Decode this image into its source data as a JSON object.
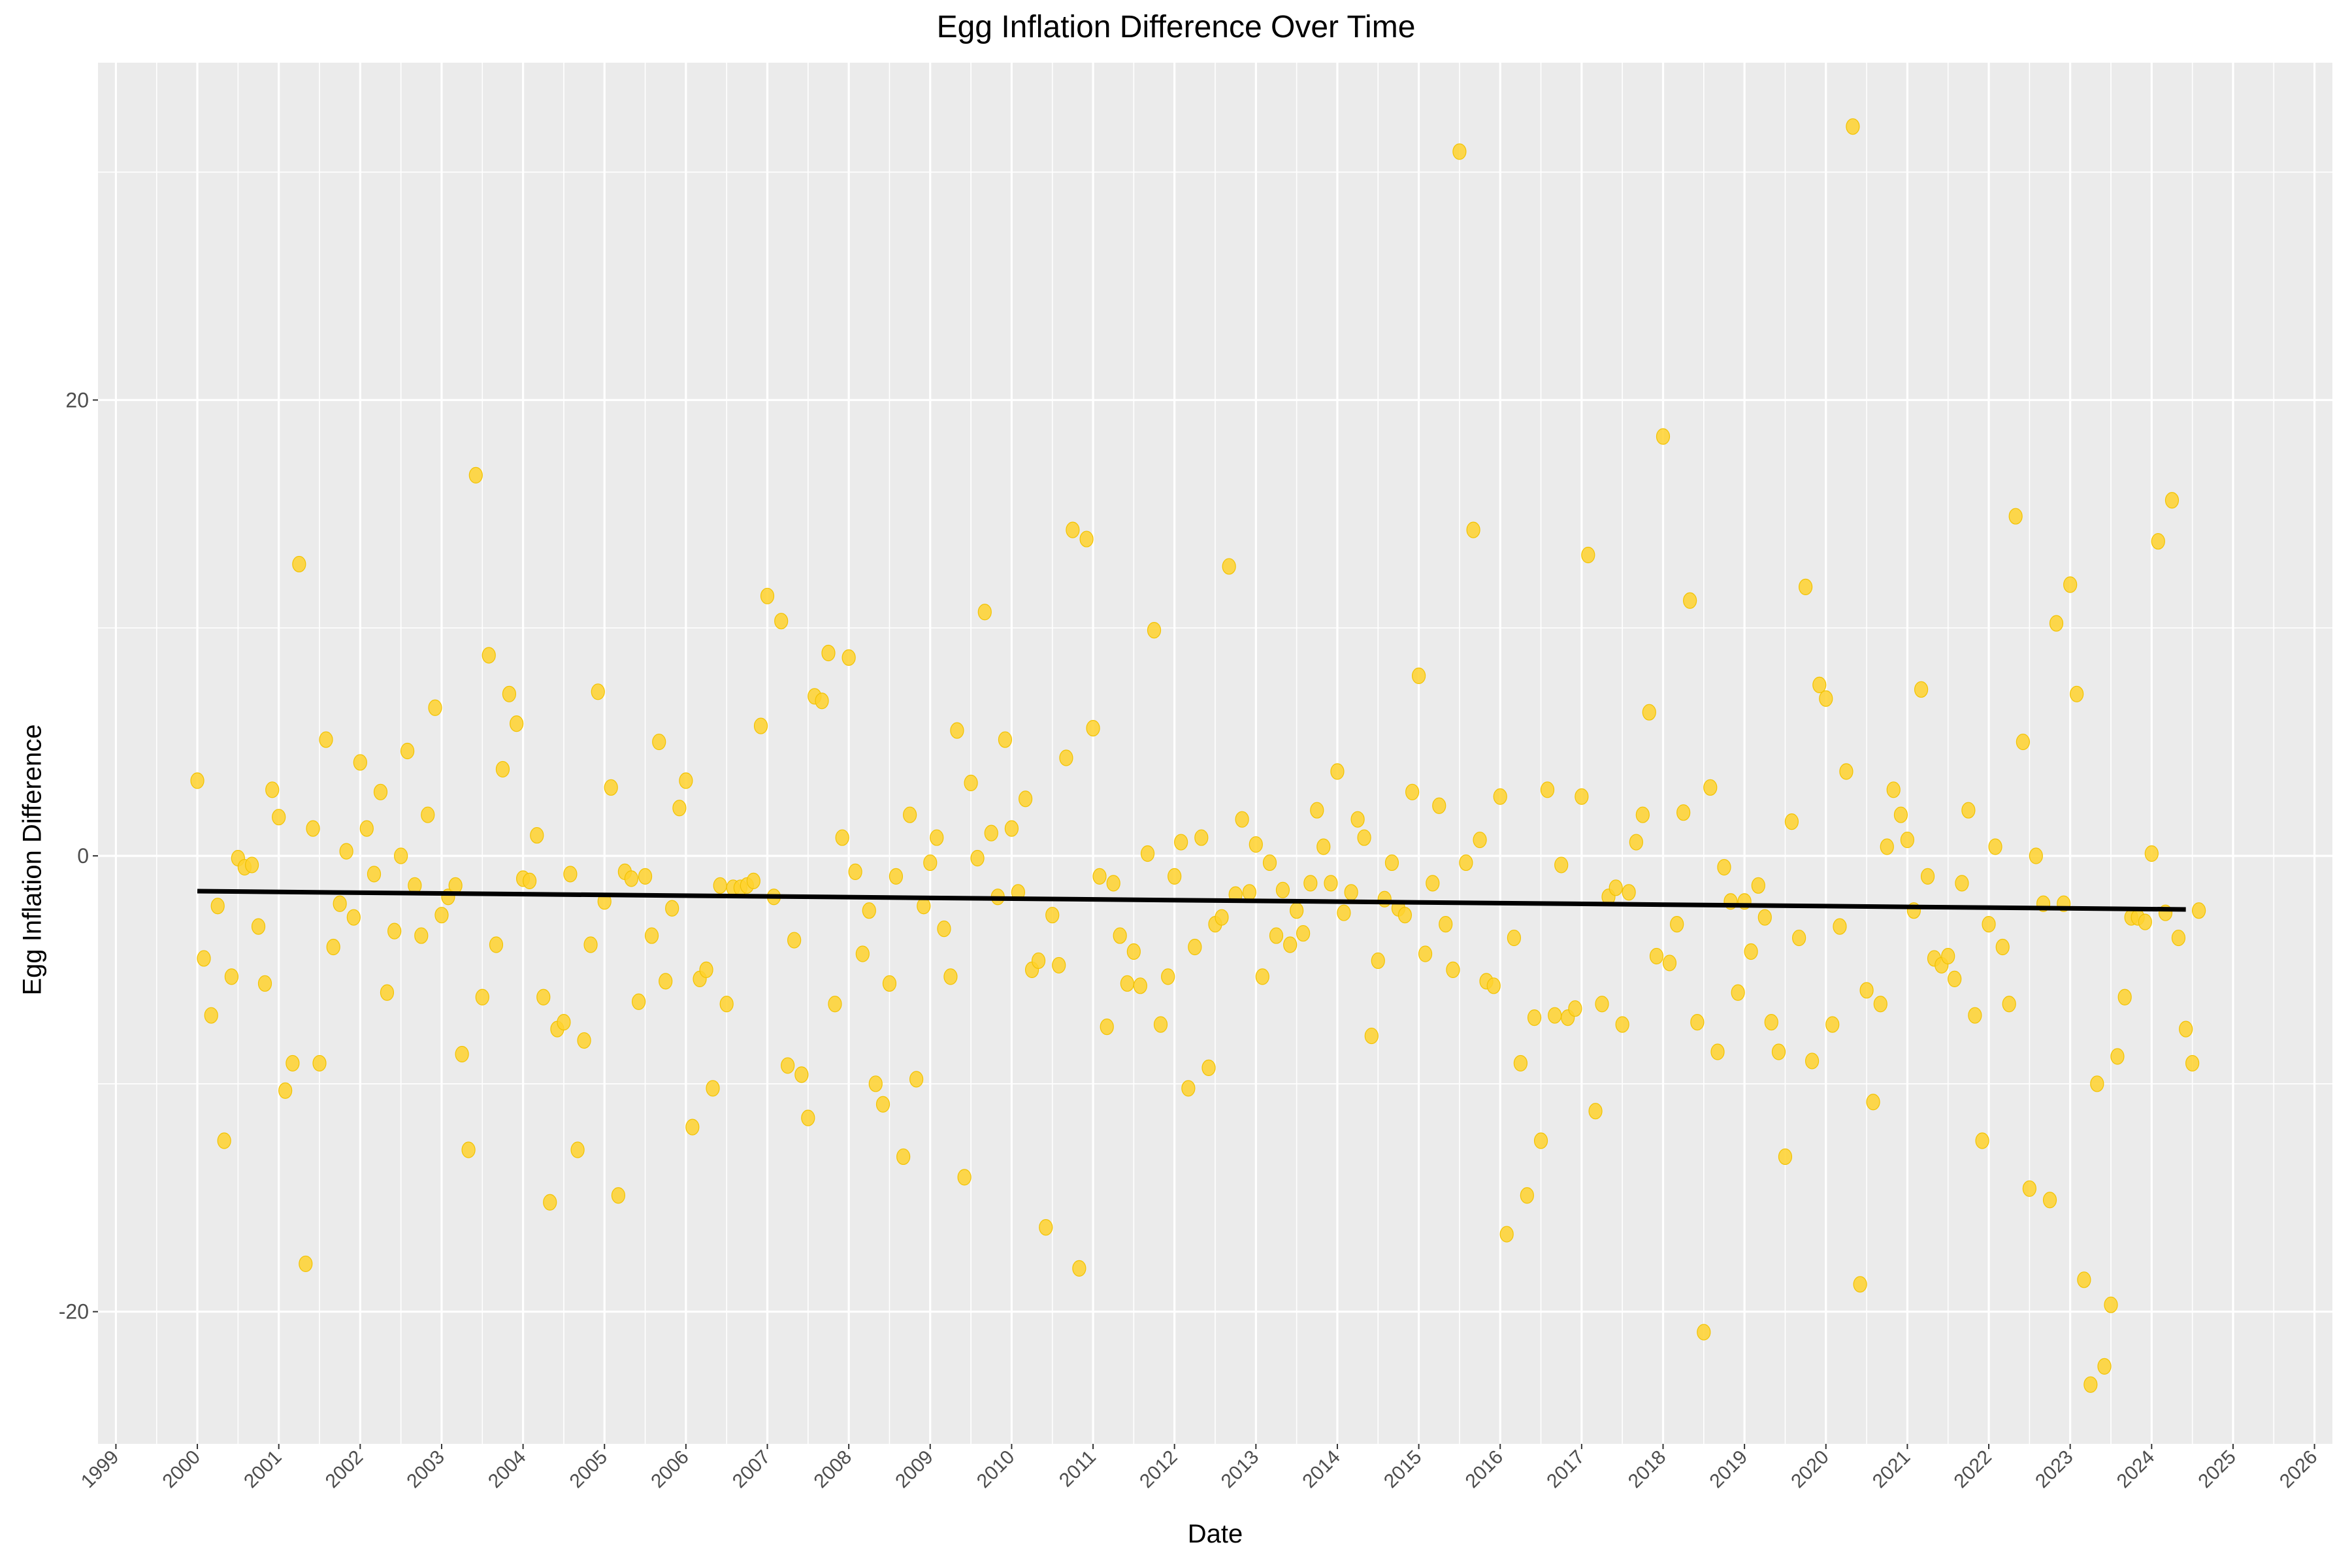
{
  "chart_data": {
    "type": "scatter",
    "title": "Egg Inflation Difference Over Time",
    "xlabel": "Date",
    "ylabel": "Egg Inflation Difference",
    "xlim": [
      1998.78,
      2026.22
    ],
    "ylim": [
      -25.8,
      34.8
    ],
    "x_ticks": [
      "1999",
      "2000",
      "2001",
      "2002",
      "2003",
      "2004",
      "2005",
      "2006",
      "2007",
      "2008",
      "2009",
      "2010",
      "2011",
      "2012",
      "2013",
      "2014",
      "2015",
      "2016",
      "2017",
      "2018",
      "2019",
      "2020",
      "2021",
      "2022",
      "2023",
      "2024",
      "2025",
      "2026"
    ],
    "y_ticks": [
      -20,
      0,
      20
    ],
    "grid": true,
    "background": "#ebebeb",
    "point_color": "#ffd22e",
    "trend_color": "#000000",
    "trend_line": {
      "x": [
        2000.0,
        2024.42
      ],
      "y": [
        -1.55,
        -2.35
      ]
    },
    "points": [
      [
        2000.0,
        3.3
      ],
      [
        2000.08,
        -4.5
      ],
      [
        2000.17,
        -7.0
      ],
      [
        2000.25,
        -2.2
      ],
      [
        2000.33,
        -12.5
      ],
      [
        2000.42,
        -5.3
      ],
      [
        2000.5,
        -0.1
      ],
      [
        2000.58,
        -0.5
      ],
      [
        2000.67,
        -0.4
      ],
      [
        2000.75,
        -3.1
      ],
      [
        2000.83,
        -5.6
      ],
      [
        2000.92,
        2.9
      ],
      [
        2001.0,
        1.7
      ],
      [
        2001.08,
        -10.3
      ],
      [
        2001.17,
        -9.1
      ],
      [
        2001.25,
        12.8
      ],
      [
        2001.33,
        -17.9
      ],
      [
        2001.42,
        1.2
      ],
      [
        2001.5,
        -9.1
      ],
      [
        2001.58,
        5.1
      ],
      [
        2001.67,
        -4.0
      ],
      [
        2001.75,
        -2.1
      ],
      [
        2001.83,
        0.2
      ],
      [
        2001.92,
        -2.7
      ],
      [
        2002.0,
        4.1
      ],
      [
        2002.08,
        1.2
      ],
      [
        2002.17,
        -0.8
      ],
      [
        2002.25,
        2.8
      ],
      [
        2002.33,
        -6.0
      ],
      [
        2002.42,
        -3.3
      ],
      [
        2002.5,
        0.0
      ],
      [
        2002.58,
        4.6
      ],
      [
        2002.67,
        -1.3
      ],
      [
        2002.75,
        -3.5
      ],
      [
        2002.83,
        1.8
      ],
      [
        2002.92,
        6.5
      ],
      [
        2003.0,
        -2.6
      ],
      [
        2003.08,
        -1.8
      ],
      [
        2003.17,
        -1.3
      ],
      [
        2003.25,
        -8.7
      ],
      [
        2003.33,
        -12.9
      ],
      [
        2003.42,
        16.7
      ],
      [
        2003.5,
        -6.2
      ],
      [
        2003.58,
        8.8
      ],
      [
        2003.67,
        -3.9
      ],
      [
        2003.75,
        3.8
      ],
      [
        2003.83,
        7.1
      ],
      [
        2003.92,
        5.8
      ],
      [
        2004.0,
        -1.0
      ],
      [
        2004.08,
        -1.1
      ],
      [
        2004.17,
        0.9
      ],
      [
        2004.25,
        -6.2
      ],
      [
        2004.33,
        -15.2
      ],
      [
        2004.42,
        -7.6
      ],
      [
        2004.5,
        -7.3
      ],
      [
        2004.58,
        -0.8
      ],
      [
        2004.67,
        -12.9
      ],
      [
        2004.75,
        -8.1
      ],
      [
        2004.83,
        -3.9
      ],
      [
        2004.92,
        7.2
      ],
      [
        2005.0,
        -2.0
      ],
      [
        2005.08,
        3.0
      ],
      [
        2005.17,
        -14.9
      ],
      [
        2005.25,
        -0.7
      ],
      [
        2005.33,
        -1.0
      ],
      [
        2005.42,
        -6.4
      ],
      [
        2005.5,
        -0.9
      ],
      [
        2005.58,
        -3.5
      ],
      [
        2005.67,
        5.0
      ],
      [
        2005.75,
        -5.5
      ],
      [
        2005.83,
        -2.3
      ],
      [
        2005.92,
        2.1
      ],
      [
        2006.0,
        3.3
      ],
      [
        2006.08,
        -11.9
      ],
      [
        2006.17,
        -5.4
      ],
      [
        2006.25,
        -5.0
      ],
      [
        2006.33,
        -10.2
      ],
      [
        2006.42,
        -1.3
      ],
      [
        2006.5,
        -6.5
      ],
      [
        2006.58,
        -1.4
      ],
      [
        2006.67,
        -1.4
      ],
      [
        2006.75,
        -1.3
      ],
      [
        2006.83,
        -1.1
      ],
      [
        2006.92,
        5.7
      ],
      [
        2007.0,
        11.4
      ],
      [
        2007.08,
        -1.8
      ],
      [
        2007.17,
        10.3
      ],
      [
        2007.25,
        -9.2
      ],
      [
        2007.33,
        -3.7
      ],
      [
        2007.42,
        -9.6
      ],
      [
        2007.5,
        -11.5
      ],
      [
        2007.58,
        7.0
      ],
      [
        2007.67,
        6.8
      ],
      [
        2007.75,
        8.9
      ],
      [
        2007.83,
        -6.5
      ],
      [
        2007.92,
        0.8
      ],
      [
        2008.0,
        8.7
      ],
      [
        2008.08,
        -0.7
      ],
      [
        2008.17,
        -4.3
      ],
      [
        2008.25,
        -2.4
      ],
      [
        2008.33,
        -10.0
      ],
      [
        2008.42,
        -10.9
      ],
      [
        2008.5,
        -5.6
      ],
      [
        2008.58,
        -0.9
      ],
      [
        2008.67,
        -13.2
      ],
      [
        2008.75,
        1.8
      ],
      [
        2008.83,
        -9.8
      ],
      [
        2008.92,
        -2.2
      ],
      [
        2009.0,
        -0.3
      ],
      [
        2009.08,
        0.8
      ],
      [
        2009.17,
        -3.2
      ],
      [
        2009.25,
        -5.3
      ],
      [
        2009.33,
        5.5
      ],
      [
        2009.42,
        -14.1
      ],
      [
        2009.5,
        3.2
      ],
      [
        2009.58,
        -0.1
      ],
      [
        2009.67,
        10.7
      ],
      [
        2009.75,
        1.0
      ],
      [
        2009.83,
        -1.8
      ],
      [
        2009.92,
        5.1
      ],
      [
        2010.0,
        1.2
      ],
      [
        2010.08,
        -1.6
      ],
      [
        2010.17,
        2.5
      ],
      [
        2010.25,
        -5.0
      ],
      [
        2010.33,
        -4.6
      ],
      [
        2010.42,
        -16.3
      ],
      [
        2010.5,
        -2.6
      ],
      [
        2010.58,
        -4.8
      ],
      [
        2010.67,
        4.3
      ],
      [
        2010.75,
        14.3
      ],
      [
        2010.83,
        -18.1
      ],
      [
        2010.92,
        13.9
      ],
      [
        2011.0,
        5.6
      ],
      [
        2011.08,
        -0.9
      ],
      [
        2011.17,
        -7.5
      ],
      [
        2011.25,
        -1.2
      ],
      [
        2011.33,
        -3.5
      ],
      [
        2011.42,
        -5.6
      ],
      [
        2011.5,
        -4.2
      ],
      [
        2011.58,
        -5.7
      ],
      [
        2011.67,
        0.1
      ],
      [
        2011.75,
        9.9
      ],
      [
        2011.83,
        -7.4
      ],
      [
        2011.92,
        -5.3
      ],
      [
        2012.0,
        -0.9
      ],
      [
        2012.08,
        0.6
      ],
      [
        2012.17,
        -10.2
      ],
      [
        2012.25,
        -4.0
      ],
      [
        2012.33,
        0.8
      ],
      [
        2012.42,
        -9.3
      ],
      [
        2012.5,
        -3.0
      ],
      [
        2012.58,
        -2.7
      ],
      [
        2012.67,
        12.7
      ],
      [
        2012.75,
        -1.7
      ],
      [
        2012.83,
        1.6
      ],
      [
        2012.92,
        -1.6
      ],
      [
        2013.0,
        0.5
      ],
      [
        2013.08,
        -5.3
      ],
      [
        2013.17,
        -0.3
      ],
      [
        2013.25,
        -3.5
      ],
      [
        2013.33,
        -1.5
      ],
      [
        2013.42,
        -3.9
      ],
      [
        2013.5,
        -2.4
      ],
      [
        2013.58,
        -3.4
      ],
      [
        2013.67,
        -1.2
      ],
      [
        2013.75,
        2.0
      ],
      [
        2013.83,
        0.4
      ],
      [
        2013.92,
        -1.2
      ],
      [
        2014.0,
        3.7
      ],
      [
        2014.08,
        -2.5
      ],
      [
        2014.17,
        -1.6
      ],
      [
        2014.25,
        1.6
      ],
      [
        2014.33,
        0.8
      ],
      [
        2014.42,
        -7.9
      ],
      [
        2014.5,
        -4.6
      ],
      [
        2014.58,
        -1.9
      ],
      [
        2014.67,
        -0.3
      ],
      [
        2014.75,
        -2.3
      ],
      [
        2014.83,
        -2.6
      ],
      [
        2014.92,
        2.8
      ],
      [
        2015.0,
        7.9
      ],
      [
        2015.08,
        -4.3
      ],
      [
        2015.17,
        -1.2
      ],
      [
        2015.25,
        2.2
      ],
      [
        2015.33,
        -3.0
      ],
      [
        2015.42,
        -5.0
      ],
      [
        2015.5,
        30.9
      ],
      [
        2015.58,
        -0.3
      ],
      [
        2015.67,
        14.3
      ],
      [
        2015.75,
        0.7
      ],
      [
        2015.83,
        -5.5
      ],
      [
        2015.92,
        -5.7
      ],
      [
        2016.0,
        2.6
      ],
      [
        2016.08,
        -16.6
      ],
      [
        2016.17,
        -3.6
      ],
      [
        2016.25,
        -9.1
      ],
      [
        2016.33,
        -14.9
      ],
      [
        2016.42,
        -7.1
      ],
      [
        2016.5,
        -12.5
      ],
      [
        2016.58,
        2.9
      ],
      [
        2016.67,
        -7.0
      ],
      [
        2016.75,
        -0.4
      ],
      [
        2016.83,
        -7.1
      ],
      [
        2016.92,
        -6.7
      ],
      [
        2017.0,
        2.6
      ],
      [
        2017.08,
        13.2
      ],
      [
        2017.17,
        -11.2
      ],
      [
        2017.25,
        -6.5
      ],
      [
        2017.33,
        -1.8
      ],
      [
        2017.42,
        -1.4
      ],
      [
        2017.5,
        -7.4
      ],
      [
        2017.58,
        -1.6
      ],
      [
        2017.67,
        0.6
      ],
      [
        2017.75,
        1.8
      ],
      [
        2017.83,
        6.3
      ],
      [
        2017.92,
        -4.4
      ],
      [
        2018.0,
        18.4
      ],
      [
        2018.08,
        -4.7
      ],
      [
        2018.17,
        -3.0
      ],
      [
        2018.25,
        1.9
      ],
      [
        2018.33,
        11.2
      ],
      [
        2018.42,
        -7.3
      ],
      [
        2018.5,
        -20.9
      ],
      [
        2018.58,
        3.0
      ],
      [
        2018.67,
        -8.6
      ],
      [
        2018.75,
        -0.5
      ],
      [
        2018.83,
        -2.0
      ],
      [
        2018.92,
        -6.0
      ],
      [
        2019.0,
        -2.0
      ],
      [
        2019.08,
        -4.2
      ],
      [
        2019.17,
        -1.3
      ],
      [
        2019.25,
        -2.7
      ],
      [
        2019.33,
        -7.3
      ],
      [
        2019.42,
        -8.6
      ],
      [
        2019.5,
        -13.2
      ],
      [
        2019.58,
        1.5
      ],
      [
        2019.67,
        -3.6
      ],
      [
        2019.75,
        11.8
      ],
      [
        2019.83,
        -9.0
      ],
      [
        2019.92,
        7.5
      ],
      [
        2020.0,
        6.9
      ],
      [
        2020.08,
        -7.4
      ],
      [
        2020.17,
        -3.1
      ],
      [
        2020.25,
        3.7
      ],
      [
        2020.33,
        32.0
      ],
      [
        2020.42,
        -18.8
      ],
      [
        2020.5,
        -5.9
      ],
      [
        2020.58,
        -10.8
      ],
      [
        2020.67,
        -6.5
      ],
      [
        2020.75,
        0.4
      ],
      [
        2020.83,
        2.9
      ],
      [
        2020.92,
        1.8
      ],
      [
        2021.0,
        0.7
      ],
      [
        2021.08,
        -2.4
      ],
      [
        2021.17,
        7.3
      ],
      [
        2021.25,
        -0.9
      ],
      [
        2021.33,
        -4.5
      ],
      [
        2021.42,
        -4.8
      ],
      [
        2021.5,
        -4.4
      ],
      [
        2021.58,
        -5.4
      ],
      [
        2021.67,
        -1.2
      ],
      [
        2021.75,
        2.0
      ],
      [
        2021.83,
        -7.0
      ],
      [
        2021.92,
        -12.5
      ],
      [
        2022.0,
        -3.0
      ],
      [
        2022.08,
        0.4
      ],
      [
        2022.17,
        -4.0
      ],
      [
        2022.25,
        -6.5
      ],
      [
        2022.33,
        14.9
      ],
      [
        2022.42,
        5.0
      ],
      [
        2022.5,
        -14.6
      ],
      [
        2022.58,
        0.0
      ],
      [
        2022.67,
        -2.1
      ],
      [
        2022.75,
        -15.1
      ],
      [
        2022.83,
        10.2
      ],
      [
        2022.92,
        -2.1
      ],
      [
        2023.0,
        11.9
      ],
      [
        2023.08,
        7.1
      ],
      [
        2023.17,
        -18.6
      ],
      [
        2023.25,
        -23.2
      ],
      [
        2023.33,
        -10.0
      ],
      [
        2023.42,
        -22.4
      ],
      [
        2023.5,
        -19.7
      ],
      [
        2023.58,
        -8.8
      ],
      [
        2023.67,
        -6.2
      ],
      [
        2023.75,
        -2.7
      ],
      [
        2023.83,
        -2.7
      ],
      [
        2023.92,
        -2.9
      ],
      [
        2024.0,
        0.1
      ],
      [
        2024.08,
        13.8
      ],
      [
        2024.17,
        -2.5
      ],
      [
        2024.25,
        15.6
      ],
      [
        2024.33,
        -3.6
      ],
      [
        2024.42,
        -7.6
      ],
      [
        2024.5,
        -9.1
      ],
      [
        2024.58,
        -2.4
      ]
    ]
  }
}
